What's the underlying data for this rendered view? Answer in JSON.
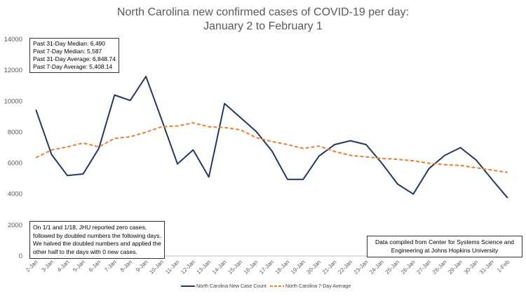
{
  "chart_data": {
    "type": "line",
    "title": "North Carolina new confirmed cases of COVID-19 per day:",
    "subtitle": "January 2 to February 1",
    "xlabel": "",
    "ylabel": "",
    "ylim": [
      0,
      14000
    ],
    "yticks": [
      0,
      2000,
      4000,
      6000,
      8000,
      10000,
      12000,
      14000
    ],
    "grid": false,
    "legend_position": "bottom",
    "categories": [
      "2-Jan",
      "3-Jan",
      "4-Jan",
      "5-Jan",
      "6-Jan",
      "7-Jan",
      "8-Jan",
      "9-Jan",
      "10-Jan",
      "11-Jan",
      "12-Jan",
      "13-Jan",
      "14-Jan",
      "15-Jan",
      "16-Jan",
      "17-Jan",
      "18-Jan",
      "19-Jan",
      "20-Jan",
      "21-Jan",
      "22-Jan",
      "23-Jan",
      "24-Jan",
      "25-Jan",
      "26-Jan",
      "27-Jan",
      "28-Jan",
      "29-Jan",
      "30-Jan",
      "31-Jan",
      "1-Feb"
    ],
    "series": [
      {
        "name": "North Carolina New Case Count",
        "color": "#203864",
        "style": "solid",
        "values": [
          9450,
          6550,
          5200,
          5300,
          6950,
          10400,
          10050,
          11600,
          8800,
          5950,
          6850,
          5100,
          9850,
          8950,
          8050,
          6800,
          4950,
          4950,
          6450,
          7200,
          7450,
          7200,
          6000,
          4650,
          4000,
          5650,
          6500,
          7000,
          6200,
          4950,
          3750
        ]
      },
      {
        "name": "North Carolina 7-Day Average",
        "color": "#ED7D31",
        "style": "dashed",
        "values": [
          6350,
          6850,
          7050,
          7300,
          7050,
          7600,
          7700,
          8000,
          8350,
          8400,
          8600,
          8350,
          8300,
          8150,
          7650,
          7400,
          7200,
          6950,
          7100,
          6750,
          6500,
          6400,
          6300,
          6250,
          6150,
          6000,
          5900,
          5850,
          5700,
          5550,
          5400
        ]
      }
    ]
  },
  "annotations": {
    "stats": [
      "Past 31-Day Median: 6,490",
      "Past 7-Day Median: 5,587",
      "Past 31-Day Average: 6,848.74",
      "Past 7-Day Average: 5,408.14"
    ],
    "note": [
      "On 1/1 and 1/18, JHU reported zero cases,",
      "followed by doubled numbers the following days.",
      "We halved the doubled numbers and applied the",
      "other half to the days with 0 new cases."
    ],
    "source": [
      "Data compiled from Center for Systems Science and",
      "Engineering at Johns Hopkins University"
    ]
  }
}
